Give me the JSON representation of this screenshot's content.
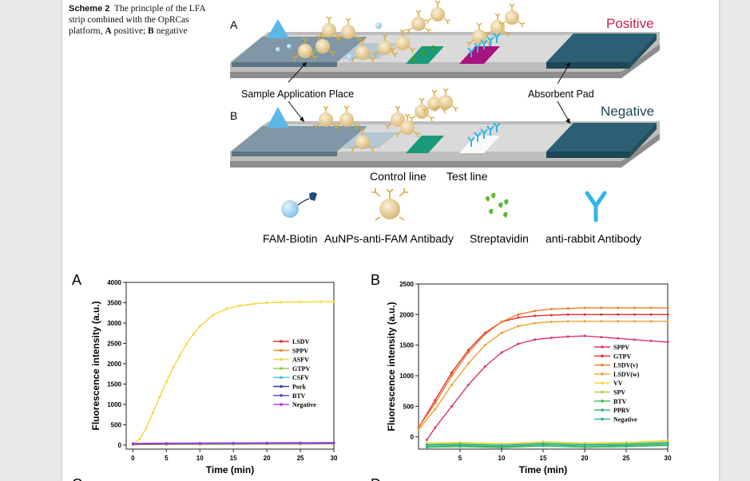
{
  "caption": {
    "label": "Scheme 2",
    "text1": "The principle of the LFA strip combined with the OpRCas platform,",
    "a": "A",
    "a_text": "positive;",
    "b": "B",
    "b_text": "negative"
  },
  "scheme": {
    "panel_a": "A",
    "panel_b": "B",
    "positive": "Positive",
    "negative": "Negative",
    "sample_application": "Sample Application Place",
    "absorbent_pad": "Absorbent Pad",
    "control_line": "Control line",
    "test_line": "Test line",
    "legend": [
      "FAM-Biotin",
      "AuNPs-anti-FAM Antibady",
      "Streptavidin",
      "anti-rabbit Antibody"
    ],
    "colors": {
      "strip": "#cfcfcf",
      "pad": "#2c5f73",
      "control": "#1a9a78",
      "test": "#a8137f",
      "gold": "#ead2a0",
      "cyan": "#2fb6e3"
    }
  },
  "charts": {
    "panel_a_label": "A",
    "panel_b_label": "B",
    "panel_c_label": "C",
    "panel_d_label": "D"
  },
  "chart_data": [
    {
      "type": "line",
      "panel": "A",
      "xlabel": "Time (min)",
      "ylabel": "Fluorescence intensity (a.u.)",
      "xlim": [
        -1,
        30
      ],
      "ylim": [
        -100,
        4000
      ],
      "xticks": [
        0,
        5,
        10,
        15,
        20,
        25,
        30
      ],
      "yticks": [
        0,
        500,
        1000,
        1500,
        2000,
        2500,
        3000,
        3500,
        4000
      ],
      "series": [
        {
          "name": "LSDV",
          "color": "#e03030",
          "x": [
            0,
            5,
            10,
            15,
            20,
            25,
            30
          ],
          "y": [
            10,
            15,
            20,
            22,
            25,
            28,
            30
          ]
        },
        {
          "name": "SPPV",
          "color": "#f08a2a",
          "x": [
            0,
            5,
            10,
            15,
            20,
            25,
            30
          ],
          "y": [
            15,
            20,
            25,
            28,
            30,
            32,
            35
          ]
        },
        {
          "name": "ASFV",
          "color": "#f5d63c",
          "x": [
            0,
            1,
            2,
            3,
            4,
            5,
            6,
            7,
            8,
            9,
            10,
            12,
            14,
            16,
            18,
            20,
            22,
            25,
            28,
            30
          ],
          "y": [
            20,
            150,
            420,
            800,
            1180,
            1550,
            1900,
            2200,
            2480,
            2720,
            2920,
            3200,
            3350,
            3430,
            3470,
            3500,
            3510,
            3520,
            3525,
            3530
          ]
        },
        {
          "name": "GTPV",
          "color": "#7fd04a",
          "x": [
            0,
            5,
            10,
            15,
            20,
            25,
            30
          ],
          "y": [
            20,
            25,
            28,
            30,
            33,
            35,
            38
          ]
        },
        {
          "name": "CSFV",
          "color": "#3cc6d6",
          "x": [
            0,
            5,
            10,
            15,
            20,
            25,
            30
          ],
          "y": [
            25,
            30,
            35,
            38,
            40,
            42,
            45
          ]
        },
        {
          "name": "Pork",
          "color": "#2a3fb0",
          "x": [
            0,
            5,
            10,
            15,
            20,
            25,
            30
          ],
          "y": [
            30,
            35,
            40,
            42,
            45,
            48,
            50
          ]
        },
        {
          "name": "BTV",
          "color": "#5a3ad6",
          "x": [
            0,
            5,
            10,
            15,
            20,
            25,
            30
          ],
          "y": [
            35,
            40,
            45,
            48,
            50,
            52,
            55
          ]
        },
        {
          "name": "Negative",
          "color": "#a93ad6",
          "x": [
            0,
            5,
            10,
            15,
            20,
            25,
            30
          ],
          "y": [
            40,
            45,
            50,
            52,
            55,
            58,
            60
          ]
        }
      ]
    },
    {
      "type": "line",
      "panel": "B",
      "xlabel": "Time (min)",
      "ylabel": "Fluorescence intensity (a.u.)",
      "xlim": [
        0,
        30
      ],
      "ylim": [
        -200,
        2500
      ],
      "xticks": [
        5,
        10,
        15,
        20,
        25,
        30
      ],
      "yticks": [
        0,
        500,
        1000,
        1500,
        2000,
        2500
      ],
      "series": [
        {
          "name": "SPPV",
          "color": "#e03070",
          "x": [
            1,
            2,
            4,
            6,
            8,
            10,
            12,
            14,
            16,
            18,
            20,
            22,
            24,
            26,
            28,
            30
          ],
          "y": [
            -50,
            150,
            500,
            850,
            1150,
            1380,
            1520,
            1590,
            1620,
            1640,
            1650,
            1630,
            1610,
            1590,
            1570,
            1550
          ]
        },
        {
          "name": "GTPV",
          "color": "#e03030",
          "x": [
            0,
            2,
            4,
            6,
            8,
            10,
            12,
            14,
            16,
            18,
            20,
            22,
            24,
            26,
            28,
            30
          ],
          "y": [
            150,
            600,
            1050,
            1420,
            1700,
            1880,
            1950,
            1980,
            1990,
            2000,
            2000,
            2000,
            2000,
            2000,
            2000,
            2000
          ]
        },
        {
          "name": "LSDV(v)",
          "color": "#f07a2a",
          "x": [
            0,
            2,
            4,
            6,
            8,
            10,
            12,
            14,
            16,
            18,
            20,
            22,
            24,
            26,
            28,
            30
          ],
          "y": [
            150,
            550,
            1000,
            1380,
            1680,
            1880,
            2000,
            2060,
            2090,
            2100,
            2110,
            2110,
            2110,
            2110,
            2110,
            2110
          ]
        },
        {
          "name": "LSDV(w)",
          "color": "#f0a030",
          "x": [
            0,
            2,
            4,
            6,
            8,
            10,
            12,
            14,
            16,
            18,
            20,
            22,
            24,
            26,
            28,
            30
          ],
          "y": [
            120,
            450,
            850,
            1200,
            1500,
            1700,
            1810,
            1860,
            1880,
            1890,
            1890,
            1890,
            1890,
            1890,
            1890,
            1890
          ]
        },
        {
          "name": "VV",
          "color": "#f5d63c",
          "x": [
            1,
            5,
            10,
            15,
            20,
            25,
            30
          ],
          "y": [
            -100,
            -90,
            -110,
            -80,
            -100,
            -90,
            -60
          ]
        },
        {
          "name": "SPV",
          "color": "#a8d640",
          "x": [
            1,
            5,
            10,
            15,
            20,
            25,
            30
          ],
          "y": [
            -120,
            -110,
            -130,
            -100,
            -120,
            -110,
            -80
          ]
        },
        {
          "name": "BTV",
          "color": "#3aba4a",
          "x": [
            1,
            5,
            10,
            15,
            20,
            25,
            30
          ],
          "y": [
            -150,
            -140,
            -160,
            -130,
            -150,
            -140,
            -120
          ]
        },
        {
          "name": "PPRV",
          "color": "#30b070",
          "x": [
            1,
            5,
            10,
            15,
            20,
            25,
            30
          ],
          "y": [
            -170,
            -160,
            -175,
            -150,
            -170,
            -160,
            -140
          ]
        },
        {
          "name": "Negative",
          "color": "#2aaab0",
          "x": [
            1,
            5,
            10,
            15,
            20,
            25,
            30
          ],
          "y": [
            -130,
            -120,
            -140,
            -110,
            -130,
            -120,
            -100
          ]
        }
      ]
    }
  ]
}
